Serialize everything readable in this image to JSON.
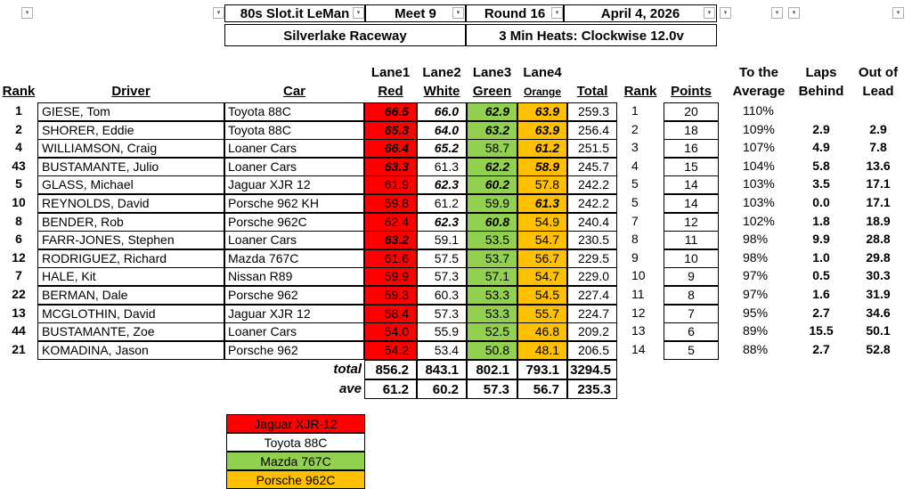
{
  "header": {
    "series": "80s Slot.it LeMan",
    "meet": "Meet 9",
    "round": "Round 16",
    "date": "April 4, 2026",
    "track": "Silverlake Raceway",
    "heats": "3 Min Heats: Clockwise 12.0v"
  },
  "columns": {
    "rank": "Rank",
    "driver": "Driver",
    "car": "Car",
    "lane1_top": "Lane1",
    "lane1_bottom": "Red",
    "lane2_top": "Lane2",
    "lane2_bottom": "White",
    "lane3_top": "Lane3",
    "lane3_bottom": "Green",
    "lane4_top": "Lane4",
    "lane4_bottom": "Orange",
    "total": "Total",
    "rank2": "Rank",
    "points": "Points",
    "avg_top": "To the",
    "avg_bottom": "Average",
    "laps_top": "Laps",
    "laps_bottom": "Behind",
    "lead_top": "Out of",
    "lead_bottom": "Lead"
  },
  "rows": [
    {
      "rank": "1",
      "driver": "GIESE, Tom",
      "car": "Toyota 88C",
      "l1": "66.5",
      "l2": "66.0",
      "l3": "62.9",
      "l4": "63.9",
      "total": "259.3",
      "rank2": "1",
      "points": "20",
      "avg": "110%",
      "laps": "",
      "lead": "",
      "b1": true,
      "b2": true,
      "b3": true,
      "b4": true
    },
    {
      "rank": "2",
      "driver": "SHORER, Eddie",
      "car": "Toyota 88C",
      "l1": "65.3",
      "l2": "64.0",
      "l3": "63.2",
      "l4": "63.9",
      "total": "256.4",
      "rank2": "2",
      "points": "18",
      "avg": "109%",
      "laps": "2.9",
      "lead": "2.9",
      "b1": true,
      "b2": true,
      "b3": true,
      "b4": true
    },
    {
      "rank": "4",
      "driver": "WILLIAMSON, Craig",
      "car": "Loaner Cars",
      "l1": "66.4",
      "l2": "65.2",
      "l3": "58.7",
      "l4": "61.2",
      "total": "251.5",
      "rank2": "3",
      "points": "16",
      "avg": "107%",
      "laps": "4.9",
      "lead": "7.8",
      "b1": true,
      "b2": true,
      "b3": false,
      "b4": true
    },
    {
      "rank": "43",
      "driver": "BUSTAMANTE, Julio",
      "car": "Loaner Cars",
      "l1": "63.3",
      "l2": "61.3",
      "l3": "62.2",
      "l4": "58.9",
      "total": "245.7",
      "rank2": "4",
      "points": "15",
      "avg": "104%",
      "laps": "5.8",
      "lead": "13.6",
      "b1": true,
      "b2": false,
      "b3": true,
      "b4": true
    },
    {
      "rank": "5",
      "driver": "GLASS, Michael",
      "car": "Jaguar XJR 12",
      "l1": "61.9",
      "l2": "62.3",
      "l3": "60.2",
      "l4": "57.8",
      "total": "242.2",
      "rank2": "5",
      "points": "14",
      "avg": "103%",
      "laps": "3.5",
      "lead": "17.1",
      "b1": false,
      "b2": true,
      "b3": true,
      "b4": false
    },
    {
      "rank": "10",
      "driver": "REYNOLDS, David",
      "car": "Porsche 962 KH",
      "l1": "59.8",
      "l2": "61.2",
      "l3": "59.9",
      "l4": "61.3",
      "total": "242.2",
      "rank2": "5",
      "points": "14",
      "avg": "103%",
      "laps": "0.0",
      "lead": "17.1",
      "b1": false,
      "b2": false,
      "b3": false,
      "b4": true
    },
    {
      "rank": "8",
      "driver": "BENDER, Rob",
      "car": "Porsche 962C",
      "l1": "62.4",
      "l2": "62.3",
      "l3": "60.8",
      "l4": "54.9",
      "total": "240.4",
      "rank2": "7",
      "points": "12",
      "avg": "102%",
      "laps": "1.8",
      "lead": "18.9",
      "b1": false,
      "b2": true,
      "b3": true,
      "b4": false
    },
    {
      "rank": "6",
      "driver": "FARR-JONES, Stephen",
      "car": "Loaner Cars",
      "l1": "63.2",
      "l2": "59.1",
      "l3": "53.5",
      "l4": "54.7",
      "total": "230.5",
      "rank2": "8",
      "points": "11",
      "avg": "98%",
      "laps": "9.9",
      "lead": "28.8",
      "b1": true,
      "b2": false,
      "b3": false,
      "b4": false
    },
    {
      "rank": "12",
      "driver": "RODRIGUEZ, Richard",
      "car": "Mazda 767C",
      "l1": "61.6",
      "l2": "57.5",
      "l3": "53.7",
      "l4": "56.7",
      "total": "229.5",
      "rank2": "9",
      "points": "10",
      "avg": "98%",
      "laps": "1.0",
      "lead": "29.8",
      "b1": false,
      "b2": false,
      "b3": false,
      "b4": false
    },
    {
      "rank": "7",
      "driver": "HALE, Kit",
      "car": "Nissan  R89",
      "l1": "59.9",
      "l2": "57.3",
      "l3": "57.1",
      "l4": "54.7",
      "total": "229.0",
      "rank2": "10",
      "points": "9",
      "avg": "97%",
      "laps": "0.5",
      "lead": "30.3",
      "b1": false,
      "b2": false,
      "b3": false,
      "b4": false
    },
    {
      "rank": "22",
      "driver": "BERMAN, Dale",
      "car": "Porsche 962",
      "l1": "59.3",
      "l2": "60.3",
      "l3": "53.3",
      "l4": "54.5",
      "total": "227.4",
      "rank2": "11",
      "points": "8",
      "avg": "97%",
      "laps": "1.6",
      "lead": "31.9",
      "b1": false,
      "b2": false,
      "b3": false,
      "b4": false
    },
    {
      "rank": "13",
      "driver": "MCGLOTHIN, David",
      "car": "Jaguar XJR 12",
      "l1": "58.4",
      "l2": "57.3",
      "l3": "53.3",
      "l4": "55.7",
      "total": "224.7",
      "rank2": "12",
      "points": "7",
      "avg": "95%",
      "laps": "2.7",
      "lead": "34.6",
      "b1": false,
      "b2": false,
      "b3": false,
      "b4": false
    },
    {
      "rank": "44",
      "driver": "BUSTAMANTE, Zoe",
      "car": "Loaner Cars",
      "l1": "54.0",
      "l2": "55.9",
      "l3": "52.5",
      "l4": "46.8",
      "total": "209.2",
      "rank2": "13",
      "points": "6",
      "avg": "89%",
      "laps": "15.5",
      "lead": "50.1",
      "b1": false,
      "b2": false,
      "b3": false,
      "b4": false
    },
    {
      "rank": "21",
      "driver": "KOMADINA, Jason",
      "car": "Porsche 962",
      "l1": "54.2",
      "l2": "53.4",
      "l3": "50.8",
      "l4": "48.1",
      "total": "206.5",
      "rank2": "14",
      "points": "5",
      "avg": "88%",
      "laps": "2.7",
      "lead": "52.8",
      "b1": false,
      "b2": false,
      "b3": false,
      "b4": false
    }
  ],
  "totals": {
    "label": "total",
    "l1": "856.2",
    "l2": "843.1",
    "l3": "802.1",
    "l4": "793.1",
    "total": "3294.5"
  },
  "averages": {
    "label": "ave",
    "l1": "61.2",
    "l2": "60.2",
    "l3": "57.3",
    "l4": "56.7",
    "total": "235.3"
  },
  "legend": [
    "Jaguar XJR-12",
    "Toyota 88C",
    "Mazda 767C",
    "Porsche 962C"
  ],
  "colors": {
    "red": "#ff0000",
    "green": "#92d050",
    "orange": "#ffc000",
    "white": "#ffffff"
  }
}
